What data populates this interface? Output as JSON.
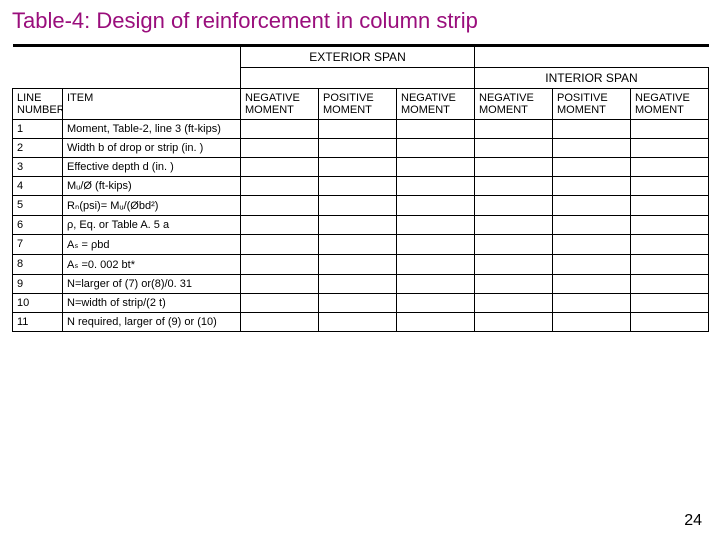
{
  "title": "Table-4: Design of reinforcement in column strip",
  "span_labels": {
    "exterior": "EXTERIOR SPAN",
    "interior": "INTERIOR SPAN"
  },
  "headers": {
    "line": "LINE NUMBER",
    "item": "ITEM",
    "neg": "NEGATIVE MOMENT",
    "pos": "POSITIVE MOMENT"
  },
  "rows": [
    {
      "n": "1",
      "item": "Moment, Table-2, line 3 (ft-kips)"
    },
    {
      "n": "2",
      "item": "Width b of drop or strip (in. )"
    },
    {
      "n": "3",
      "item": "Effective depth d (in. )"
    },
    {
      "n": "4",
      "item": "Mᵤ/Ø (ft-kips)"
    },
    {
      "n": "5",
      "item": "Rₙ(psi)= Mᵤ/(Øbd²)"
    },
    {
      "n": "6",
      "item": "ρ, Eq. or Table A. 5 a"
    },
    {
      "n": "7",
      "item": "Aₛ = ρbd"
    },
    {
      "n": "8",
      "item": "Aₛ =0. 002 bt*"
    },
    {
      "n": "9",
      "item": "N=larger of (7) or(8)/0. 31"
    },
    {
      "n": "10",
      "item": "N=width of strip/(2 t)"
    },
    {
      "n": "11",
      "item": "N required, larger of (9) or (10)"
    }
  ],
  "page_number": "24",
  "colors": {
    "title": "#9a0e7c",
    "border": "#000000",
    "background": "#ffffff"
  }
}
